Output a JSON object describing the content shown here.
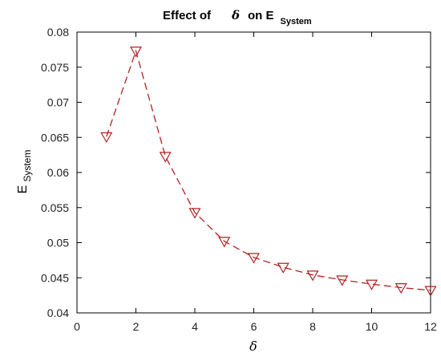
{
  "chart_data": {
    "type": "line",
    "title": {
      "prefix": "Effect of",
      "symbol": "δ",
      "middle": "on E",
      "subscript": "System"
    },
    "xlabel": "δ",
    "ylabel": {
      "main": "E",
      "subscript": "System"
    },
    "xlim": [
      0,
      12
    ],
    "ylim": [
      0.04,
      0.08
    ],
    "x_ticks": [
      "0",
      "2",
      "4",
      "6",
      "8",
      "10",
      "12"
    ],
    "y_ticks": [
      "0.04",
      "0.045",
      "0.05",
      "0.055",
      "0.06",
      "0.065",
      "0.07",
      "0.075",
      "0.08"
    ],
    "grid": false,
    "series": [
      {
        "line_style": "dashed",
        "marker": "downward-triangle",
        "color": "#b22222",
        "x": [
          1,
          2,
          3,
          4,
          5,
          6,
          7,
          8,
          9,
          10,
          11,
          12
        ],
        "y": [
          0.0651,
          0.0773,
          0.0623,
          0.0543,
          0.0502,
          0.0479,
          0.0465,
          0.0454,
          0.0447,
          0.0441,
          0.0436,
          0.0432
        ]
      }
    ]
  }
}
